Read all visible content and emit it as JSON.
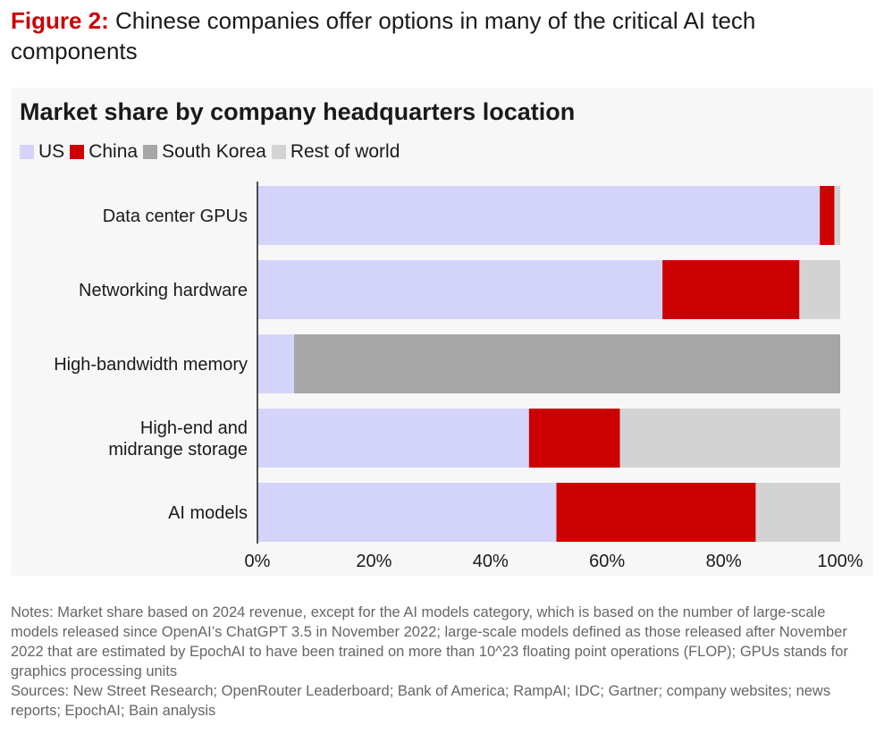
{
  "figure": {
    "label": "Figure 2:",
    "title": "Chinese companies offer options in many of the critical AI tech components"
  },
  "notes": "Notes: Market share based on 2024 revenue, except for the AI models category, which is based on the number of large-scale models released since OpenAI’s ChatGPT 3.5 in November 2022; large-scale models defined as those released after November 2022 that are estimated by EpochAI to have been trained on more than 10^23 floating point operations (FLOP); GPUs stands for graphics processing units",
  "sources": "Sources: New Street Research; OpenRouter Leaderboard; Bank of America; RampAI; IDC; Gartner; company websites; news reports; EpochAI; Bain analysis",
  "chart_data": {
    "type": "bar",
    "orientation": "horizontal",
    "stacked": true,
    "title": "Market share by company headquarters location",
    "categories": [
      "Data center GPUs",
      "Networking hardware",
      "High-bandwidth memory",
      "High-end and midrange storage",
      "AI models"
    ],
    "series": [
      {
        "name": "US",
        "color": "#d4d4fa",
        "values": [
          96.5,
          69.5,
          6.3,
          46.6,
          51.3
        ]
      },
      {
        "name": "China",
        "color": "#cc0000",
        "values": [
          2.5,
          23.5,
          0,
          15.6,
          34.2
        ]
      },
      {
        "name": "South Korea",
        "color": "#a6a6a6",
        "values": [
          0,
          0,
          93.7,
          0,
          0
        ]
      },
      {
        "name": "Rest of world",
        "color": "#d3d3d3",
        "values": [
          1.0,
          7.0,
          0,
          37.8,
          14.5
        ]
      }
    ],
    "xlim": [
      0,
      100
    ],
    "x_ticks": [
      "0%",
      "20%",
      "40%",
      "60%",
      "80%",
      "100%"
    ],
    "x_tick_values": [
      0,
      20,
      40,
      60,
      80,
      100
    ],
    "grid": false,
    "legend_position": "top-left"
  }
}
